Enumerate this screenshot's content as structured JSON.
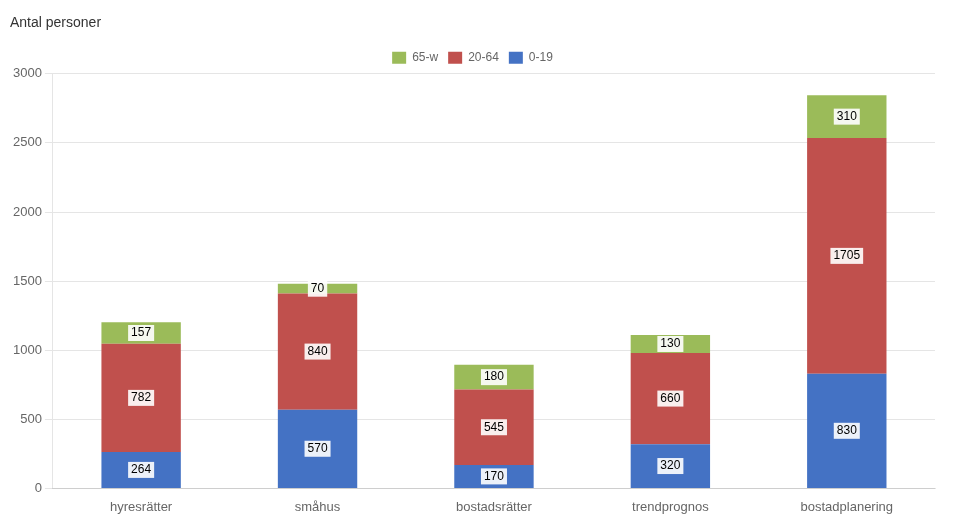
{
  "chart_data": {
    "type": "bar",
    "stacked": true,
    "ylabel": "Antal personer",
    "categories": [
      "hyresrätter",
      "småhus",
      "bostadsrätter",
      "trendprognos",
      "bostadplanering"
    ],
    "series": [
      {
        "name": "0-19",
        "color": "#4472c4",
        "values": [
          264,
          570,
          170,
          320,
          830
        ]
      },
      {
        "name": "20-64",
        "color": "#c0504d",
        "values": [
          782,
          840,
          545,
          660,
          1705
        ]
      },
      {
        "name": "65-w",
        "color": "#9bbb59",
        "values": [
          157,
          70,
          180,
          130,
          310
        ]
      }
    ],
    "ylim": [
      0,
      3000
    ],
    "yticks": [
      0,
      500,
      1000,
      1500,
      2000,
      2500,
      3000
    ],
    "grid": true,
    "legend": "top",
    "data_labels": true
  }
}
